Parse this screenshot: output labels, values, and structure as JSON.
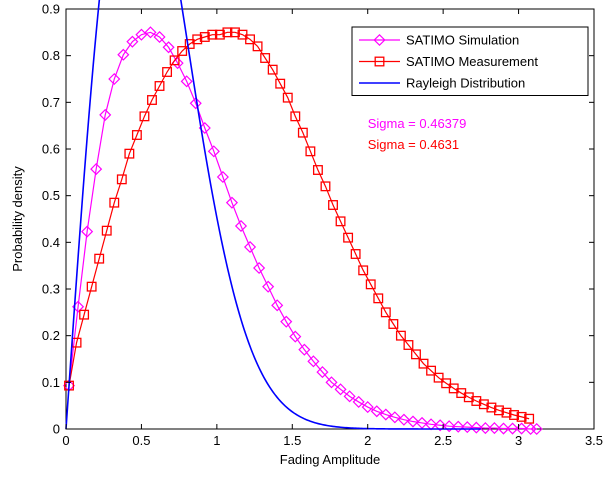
{
  "chart_data": {
    "type": "line",
    "title": "",
    "xlabel": "Fading Amplitude",
    "ylabel": "Probability density",
    "xlim": [
      0,
      3.5
    ],
    "ylim": [
      0,
      0.9
    ],
    "xticks": [
      "0",
      "0.5",
      "1",
      "1.5",
      "2",
      "2.5",
      "3",
      "3.5"
    ],
    "yticks": [
      "0",
      "0.1",
      "0.2",
      "0.3",
      "0.4",
      "0.5",
      "0.6",
      "0.7",
      "0.8",
      "0.9"
    ],
    "grid": false,
    "legend_position": "top-right",
    "series": [
      {
        "name": "SATIMO Simulation",
        "color": "#ff00ff",
        "marker": "diamond",
        "line": "solid",
        "x": [
          0.02,
          0.08,
          0.14,
          0.2,
          0.26,
          0.32,
          0.38,
          0.44,
          0.5,
          0.56,
          0.62,
          0.68,
          0.74,
          0.8,
          0.86,
          0.92,
          0.98,
          1.04,
          1.1,
          1.16,
          1.22,
          1.28,
          1.34,
          1.4,
          1.46,
          1.52,
          1.58,
          1.64,
          1.7,
          1.76,
          1.82,
          1.88,
          1.94,
          2.0,
          2.06,
          2.12,
          2.18,
          2.24,
          2.3,
          2.36,
          2.42,
          2.48,
          2.54,
          2.6,
          2.66,
          2.72,
          2.78,
          2.84,
          2.9,
          2.96,
          3.02,
          3.08,
          3.12
        ],
        "y": [
          0.093,
          0.262,
          0.423,
          0.557,
          0.673,
          0.75,
          0.802,
          0.83,
          0.845,
          0.85,
          0.84,
          0.818,
          0.784,
          0.745,
          0.698,
          0.645,
          0.595,
          0.54,
          0.485,
          0.435,
          0.39,
          0.345,
          0.305,
          0.265,
          0.23,
          0.198,
          0.17,
          0.145,
          0.122,
          0.1,
          0.085,
          0.07,
          0.058,
          0.047,
          0.038,
          0.031,
          0.025,
          0.02,
          0.016,
          0.013,
          0.01,
          0.008,
          0.006,
          0.005,
          0.004,
          0.003,
          0.002,
          0.002,
          0.001,
          0.001,
          0.001,
          0.0,
          0.0
        ]
      },
      {
        "name": "SATIMO Measurement",
        "color": "#ff0000",
        "marker": "square",
        "line": "solid",
        "x": [
          0.02,
          0.07,
          0.12,
          0.17,
          0.22,
          0.27,
          0.32,
          0.37,
          0.42,
          0.47,
          0.52,
          0.57,
          0.62,
          0.67,
          0.72,
          0.77,
          0.82,
          0.87,
          0.92,
          0.97,
          1.02,
          1.07,
          1.12,
          1.17,
          1.22,
          1.27,
          1.32,
          1.37,
          1.42,
          1.47,
          1.52,
          1.57,
          1.62,
          1.67,
          1.72,
          1.77,
          1.82,
          1.87,
          1.92,
          1.97,
          2.02,
          2.07,
          2.12,
          2.17,
          2.22,
          2.27,
          2.32,
          2.37,
          2.42,
          2.47,
          2.52,
          2.57,
          2.62,
          2.67,
          2.72,
          2.77,
          2.82,
          2.87,
          2.92,
          2.97,
          3.02,
          3.07
        ],
        "y": [
          0.093,
          0.185,
          0.245,
          0.305,
          0.365,
          0.425,
          0.485,
          0.535,
          0.59,
          0.63,
          0.67,
          0.705,
          0.735,
          0.765,
          0.79,
          0.81,
          0.825,
          0.835,
          0.84,
          0.845,
          0.845,
          0.85,
          0.85,
          0.845,
          0.835,
          0.82,
          0.795,
          0.77,
          0.74,
          0.71,
          0.67,
          0.635,
          0.595,
          0.555,
          0.52,
          0.48,
          0.445,
          0.41,
          0.375,
          0.34,
          0.31,
          0.28,
          0.25,
          0.225,
          0.2,
          0.18,
          0.16,
          0.14,
          0.125,
          0.11,
          0.098,
          0.087,
          0.077,
          0.068,
          0.06,
          0.053,
          0.046,
          0.04,
          0.035,
          0.03,
          0.026,
          0.022
        ]
      },
      {
        "name": "Rayleigh Distribution",
        "color": "#0000ff",
        "marker": "none",
        "line": "solid",
        "sigma": 0.4631,
        "x_range": [
          0,
          2.75
        ]
      }
    ],
    "annotations": [
      {
        "text": "Sigma = 0.46379",
        "color": "#ff00ff",
        "x": 2.0,
        "y": 0.645
      },
      {
        "text": "Sigma = 0.4631",
        "color": "#ff0000",
        "x": 2.0,
        "y": 0.6
      }
    ]
  }
}
